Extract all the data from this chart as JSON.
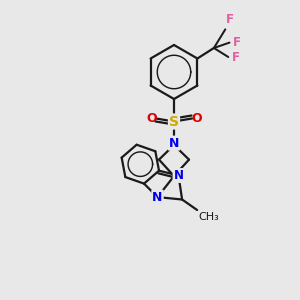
{
  "background_color": "#e8e8e8",
  "bond_color": "#1a1a1a",
  "nitrogen_color": "#0000ee",
  "sulfur_color": "#ccaa00",
  "oxygen_color": "#dd0000",
  "fluorine_color": "#e060a0",
  "figsize": [
    3.0,
    3.0
  ],
  "dpi": 100,
  "xlim": [
    0,
    10
  ],
  "ylim": [
    0,
    10
  ]
}
